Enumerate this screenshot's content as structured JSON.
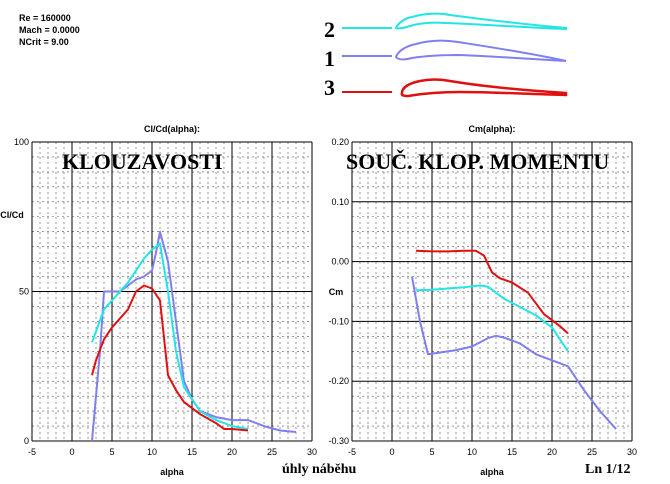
{
  "params": {
    "re": "Re = 160000",
    "mach": "Mach = 0.0000",
    "ncrit": "NCrit = 9.00"
  },
  "legend": [
    {
      "number": "2",
      "color": "#22e5e5"
    },
    {
      "number": "1",
      "color": "#7f7fef"
    },
    {
      "number": "3",
      "color": "#e01010"
    }
  ],
  "colors": {
    "cyan": "#22e5e5",
    "blue": "#7f7fef",
    "red": "#e01010"
  },
  "footer": {
    "x_caption": "úhly náběhu",
    "ln": "Ln 1/12"
  },
  "chart_data": [
    {
      "type": "line",
      "title": "Cl/Cd(alpha):",
      "overlay_title": "KLOUZAVOSTI",
      "xlabel": "alpha",
      "ylabel": "Cl/Cd",
      "xlim": [
        -5,
        30
      ],
      "ylim": [
        0,
        100
      ],
      "xticks": [
        -5,
        0,
        5,
        10,
        15,
        20,
        25,
        30
      ],
      "yticks": [
        0,
        50,
        100
      ],
      "series": [
        {
          "color": "#7f7fef",
          "x": [
            2.5,
            3.5,
            4,
            5,
            6,
            7,
            8,
            9,
            10,
            10.5,
            11,
            12,
            13,
            14,
            15,
            16,
            18,
            20,
            22,
            24,
            26,
            28
          ],
          "y": [
            0,
            30,
            50,
            50,
            50,
            52,
            54,
            55,
            57,
            63,
            70,
            60,
            40,
            20,
            14,
            10,
            8,
            7,
            7,
            5,
            3.5,
            3
          ]
        },
        {
          "color": "#22e5e5",
          "x": [
            2.5,
            4,
            5,
            6,
            7,
            8,
            9,
            10,
            10.5,
            11,
            12,
            13,
            14,
            16,
            18,
            20,
            22
          ],
          "y": [
            33,
            44,
            47,
            50,
            53,
            57,
            61,
            64,
            65,
            66,
            50,
            30,
            18,
            10,
            7,
            5,
            4
          ]
        },
        {
          "color": "#e01010",
          "x": [
            2.5,
            3,
            4,
            5,
            6,
            7,
            8,
            9,
            10,
            11,
            12,
            13,
            14,
            16,
            18,
            19,
            20,
            22
          ],
          "y": [
            22,
            27,
            34,
            38,
            41,
            44,
            50,
            52,
            51,
            47,
            22,
            17,
            13,
            9,
            6,
            4,
            4,
            3.5
          ]
        }
      ]
    },
    {
      "type": "line",
      "title": "Cm(alpha):",
      "overlay_title": "SOUČ. KLOP. MOMENTU",
      "xlabel": "alpha",
      "ylabel": "Cm",
      "xlim": [
        -5,
        30
      ],
      "ylim": [
        -0.3,
        0.2
      ],
      "xticks": [
        -5,
        0,
        5,
        10,
        15,
        20,
        25,
        30
      ],
      "yticks": [
        -0.3,
        -0.2,
        -0.1,
        0.0,
        0.1,
        0.2
      ],
      "ytick_labels": [
        "-0.30",
        "-0.20",
        "-0.10",
        "0.00",
        "0.10",
        "0.20"
      ],
      "series": [
        {
          "color": "#7f7fef",
          "x": [
            2.5,
            3.5,
            4.5,
            6,
            8,
            10,
            12,
            13,
            14,
            16,
            18,
            20,
            22,
            24,
            26,
            28
          ],
          "y": [
            -0.025,
            -0.1,
            -0.155,
            -0.152,
            -0.148,
            -0.142,
            -0.128,
            -0.124,
            -0.127,
            -0.137,
            -0.155,
            -0.165,
            -0.175,
            -0.215,
            -0.25,
            -0.28
          ]
        },
        {
          "color": "#22e5e5",
          "x": [
            3,
            5,
            7,
            9,
            11,
            12,
            13,
            14,
            16,
            18,
            20,
            22
          ],
          "y": [
            -0.048,
            -0.047,
            -0.045,
            -0.043,
            -0.04,
            -0.042,
            -0.052,
            -0.062,
            -0.076,
            -0.09,
            -0.11,
            -0.15
          ]
        },
        {
          "color": "#e01010",
          "x": [
            3,
            5,
            7,
            9,
            10.5,
            11.5,
            12.5,
            13.5,
            15,
            17,
            19,
            21,
            22
          ],
          "y": [
            0.018,
            0.017,
            0.017,
            0.018,
            0.018,
            0.01,
            -0.018,
            -0.028,
            -0.035,
            -0.052,
            -0.088,
            -0.108,
            -0.12
          ]
        }
      ]
    }
  ]
}
